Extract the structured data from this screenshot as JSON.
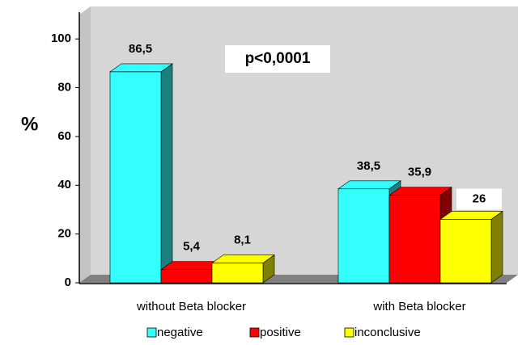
{
  "chart_data": {
    "type": "bar3d",
    "annotations": [
      "p<0,0001"
    ],
    "ylabel": "%",
    "categories": [
      "without Beta blocker",
      "with Beta blocker"
    ],
    "series": [
      {
        "name": "negative",
        "color": "#33ffff",
        "values": [
          86.5,
          38.5
        ],
        "value_labels": [
          "86,5",
          "38,5"
        ]
      },
      {
        "name": "positive",
        "color": "#ff0000",
        "values": [
          5.4,
          35.9
        ],
        "value_labels": [
          "5,4",
          "35,9"
        ]
      },
      {
        "name": "inconclusive",
        "color": "#ffff00",
        "values": [
          8.1,
          26
        ],
        "value_labels": [
          "8,1",
          "26"
        ]
      }
    ],
    "ylim": [
      0,
      110
    ],
    "yticks": [
      0,
      20,
      40,
      60,
      80,
      100
    ],
    "grid": false,
    "legend": "bottom"
  }
}
